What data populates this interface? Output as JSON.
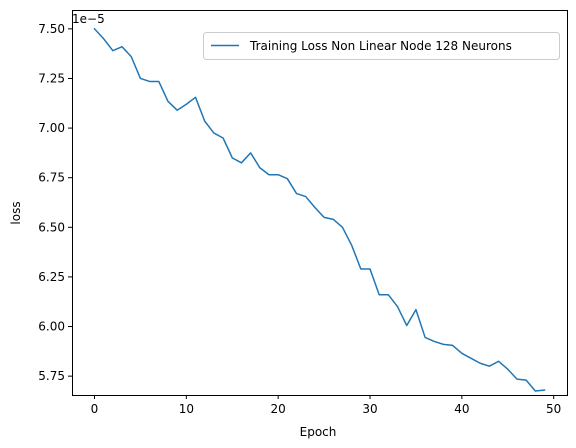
{
  "chart_data": {
    "type": "line",
    "title": "",
    "xlabel": "Epoch",
    "ylabel": "loss",
    "y_multiplier_label": "1e−5",
    "xlim": [
      -2.45,
      51.45
    ],
    "ylim": [
      5.655,
      7.595
    ],
    "x_ticks": [
      0,
      10,
      20,
      30,
      40,
      50
    ],
    "x_tick_labels": [
      "0",
      "10",
      "20",
      "30",
      "40",
      "50"
    ],
    "y_ticks": [
      5.75,
      6.0,
      6.25,
      6.5,
      6.75,
      7.0,
      7.25,
      7.5
    ],
    "y_tick_labels": [
      "5.75",
      "6.00",
      "6.25",
      "6.50",
      "6.75",
      "7.00",
      "7.25",
      "7.50"
    ],
    "grid": false,
    "legend_position": "top-right",
    "series": [
      {
        "name": "Training Loss Non Linear Node 128 Neurons",
        "color": "#1f77b4",
        "x": [
          0,
          1,
          2,
          3,
          4,
          5,
          6,
          7,
          8,
          9,
          10,
          11,
          12,
          13,
          14,
          15,
          16,
          17,
          18,
          19,
          20,
          21,
          22,
          23,
          24,
          25,
          26,
          27,
          28,
          29,
          30,
          31,
          32,
          33,
          34,
          35,
          36,
          37,
          38,
          39,
          40,
          41,
          42,
          43,
          44,
          45,
          46,
          47,
          48,
          49
        ],
        "values": [
          7.5,
          7.45,
          7.39,
          7.41,
          7.36,
          7.25,
          7.235,
          7.235,
          7.135,
          7.09,
          7.12,
          7.155,
          7.035,
          6.975,
          6.95,
          6.85,
          6.825,
          6.875,
          6.8,
          6.765,
          6.765,
          6.745,
          6.67,
          6.655,
          6.6,
          6.55,
          6.54,
          6.5,
          6.41,
          6.29,
          6.29,
          6.16,
          6.16,
          6.1,
          6.005,
          6.085,
          5.945,
          5.925,
          5.91,
          5.905,
          5.865,
          5.84,
          5.815,
          5.8,
          5.825,
          5.785,
          5.735,
          5.73,
          5.675,
          5.68
        ]
      }
    ]
  }
}
